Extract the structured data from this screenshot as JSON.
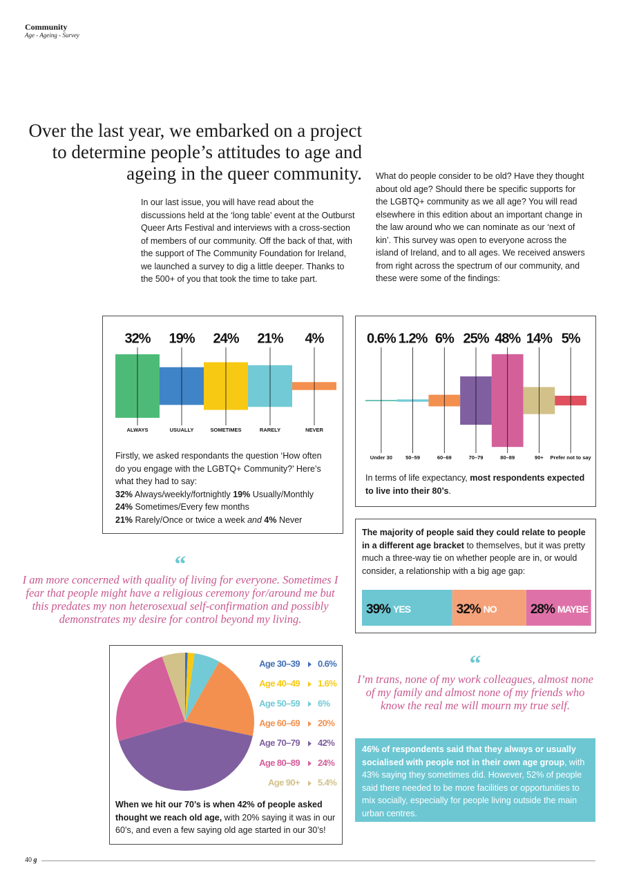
{
  "header": {
    "section": "Community",
    "subtitle": "Age - Ageing - Survey"
  },
  "headline": "Over the last year, we embarked on a project to determine people’s attitudes to age and ageing in the queer community.",
  "intro": [
    "In our last issue, you will have read about the discussions held at the ‘long table’ event at the Outburst Queer Arts Festival and interviews with a cross-section of members of our community. Off the back of that, with the support of The Community Foundation for Ireland, we launched a survey to dig a little deeper. Thanks to the 500+ of you that took the time to take part.",
    "What do people consider to be old? Have they thought about old age? Should there be specific supports for the LGBTQ+ community as we all age? You will read elsewhere in this edition about an important change in the law around who we can nominate as our ‘next of kin’. This survey was open to everyone across the island of Ireland, and to all ages. We received answers from right across the spectrum of our community, and these were some of the findings:"
  ],
  "chart_data": [
    {
      "type": "bar",
      "categories": [
        "ALWAYS",
        "USUALLY",
        "SOMETIMES",
        "RARELY",
        "NEVER"
      ],
      "values": [
        32,
        19,
        24,
        21,
        4
      ],
      "value_labels": [
        "32%",
        "19%",
        "24%",
        "21%",
        "4%"
      ],
      "colors": [
        "#4dbb77",
        "#3f84c6",
        "#f8c913",
        "#71cad6",
        "#f3904f"
      ],
      "caption": [
        [
          {
            "text": "Firstly, we asked respondants the question ‘How often do you engage with the LGBTQ+ Community?’ Here’s what they had to say:"
          }
        ],
        [
          {
            "text": "32%",
            "bold": true
          },
          {
            "text": " Always/weekly/fortnightly "
          },
          {
            "text": "19%",
            "bold": true
          },
          {
            "text": " Usually/Monthly"
          }
        ],
        [
          {
            "text": "24%",
            "bold": true
          },
          {
            "text": " Sometimes/Every few months"
          }
        ],
        [
          {
            "text": "21%",
            "bold": true
          },
          {
            "text": " Rarely/Once or twice a week "
          },
          {
            "text": "and",
            "italic": true
          },
          {
            "text": " "
          },
          {
            "text": "4%",
            "bold": true
          },
          {
            "text": " Never"
          }
        ]
      ]
    },
    {
      "type": "bar",
      "categories": [
        "Under 30",
        "50–59",
        "60–69",
        "70–79",
        "80–89",
        "90+",
        "Prefer not to say"
      ],
      "values": [
        0.6,
        1.2,
        6,
        25,
        48,
        14,
        5
      ],
      "value_labels": [
        "0.6%",
        "1.2%",
        "6%",
        "25%",
        "48%",
        "14%",
        "5%"
      ],
      "colors": [
        "#4fb9a8",
        "#71cad6",
        "#f3904f",
        "#7f5fa0",
        "#d4609a",
        "#d2c28a",
        "#e0505e"
      ],
      "caption": [
        [
          {
            "text": "In terms of life expectancy, "
          },
          {
            "text": "most respondents expected to live into their 80’s",
            "bold": true
          },
          {
            "text": "."
          }
        ]
      ]
    },
    {
      "type": "bar",
      "stacked": true,
      "intro": [
        [
          {
            "text": "The majority of people said they could relate to people in a different age bracket",
            "bold": true
          },
          {
            "text": " to themselves, but it was pretty much a three-way tie on whether people are in, or would consider, a relationship with a big age gap:"
          }
        ]
      ],
      "series": [
        {
          "name": "YES",
          "color": "#6cc7d3",
          "values": [
            39
          ],
          "value_labels": [
            "39%"
          ]
        },
        {
          "name": "NO",
          "color": "#f5a27a",
          "values": [
            32
          ],
          "value_labels": [
            "32%"
          ]
        },
        {
          "name": "MAYBE",
          "color": "#de72a8",
          "values": [
            28
          ],
          "value_labels": [
            "28%"
          ]
        }
      ]
    },
    {
      "type": "pie",
      "categories": [
        "Age 30–39",
        "Age 40–49",
        "Age 50–59",
        "Age 60–69",
        "Age 70–79",
        "Age 80–89",
        "Age 90+"
      ],
      "values": [
        0.6,
        1.6,
        6,
        20,
        42,
        24,
        5.4
      ],
      "value_labels": [
        "0.6%",
        "1.6%",
        "6%",
        "20%",
        "42%",
        "24%",
        "5.4%"
      ],
      "colors": [
        "#3f6fb5",
        "#f8c913",
        "#71cad6",
        "#f3904f",
        "#7f5fa0",
        "#d4609a",
        "#d2c28a"
      ],
      "caption": [
        [
          {
            "text": "When we hit our 70’s is when 42% of people asked thought we reach old age,",
            "bold": true
          },
          {
            "text": " with 20% saying it was in our 60’s, and even a few saying old age started in our 30’s!"
          }
        ]
      ]
    }
  ],
  "quotes": [
    {
      "mark": "“",
      "text": "I am more concerned with quality of living for everyone. Sometimes I fear that people might have a religious ceremony for/around me but this predates my non heterosexual self-confirmation and possibly demonstrates my desire for control beyond my living."
    },
    {
      "mark": "“",
      "text": "I’m trans, none of my work colleagues, almost none of my family and almost none of my friends who know the real me will mourn my true self."
    }
  ],
  "callout": [
    [
      {
        "text": "46% of respondents said that they always or usually socialised with people not in their own age group",
        "bold": true
      },
      {
        "text": ", with 43% saying they sometimes did. However, 52% of people said there needed to be more facilities or opportunities to mix socially, especially for people living outside the main urban centres."
      }
    ]
  ],
  "footer": {
    "page": "40",
    "logo": "g"
  }
}
